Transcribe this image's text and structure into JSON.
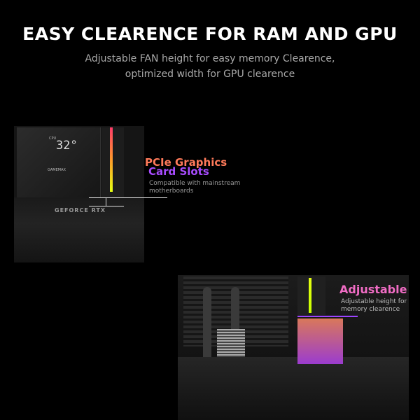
{
  "header": {
    "title": "EASY CLEARENCE FOR RAM AND GPU",
    "subtitle_line1": "Adjustable FAN height for easy memory Clearence,",
    "subtitle_line2": "optimized width for GPU clearence"
  },
  "gpu_section": {
    "heading_line1": "PCIe Graphics",
    "heading_line2": "Card Slots",
    "caption": "Compatible with mainstream motherboards",
    "display_temp": "32°",
    "display_label": "CPU",
    "display_brand": "GAMEMAX",
    "gpu_label": "GEFORCE RTX",
    "heading_color1": "#ff7a5a",
    "heading_color2": "#a84cff"
  },
  "ram_section": {
    "heading": "Adjustable",
    "caption": "Adjustable height for memory clearence",
    "heading_color": "#f06cc4"
  }
}
